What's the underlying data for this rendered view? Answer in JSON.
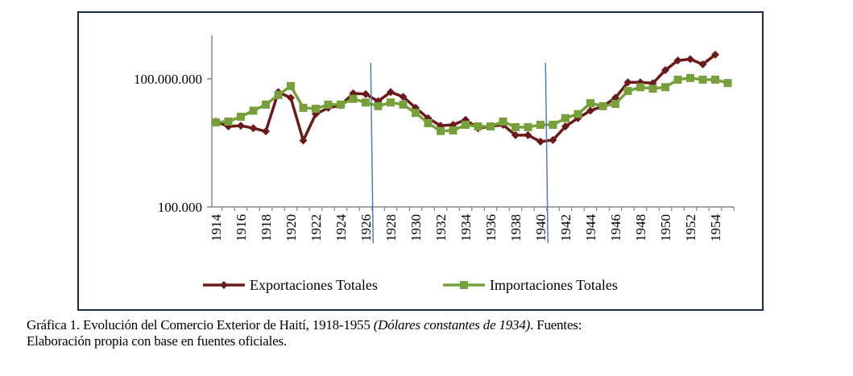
{
  "chart_data": {
    "type": "line",
    "title": "",
    "xlabel": "",
    "ylabel": "",
    "yscale": "log",
    "ylim": [
      100000,
      1000000000
    ],
    "y_ticks": [
      {
        "value": 100000,
        "label": "100.000"
      },
      {
        "value": 100000000,
        "label": "100.000.000"
      }
    ],
    "x": [
      1914,
      1915,
      1916,
      1917,
      1918,
      1919,
      1920,
      1921,
      1922,
      1923,
      1924,
      1925,
      1926,
      1927,
      1928,
      1929,
      1930,
      1931,
      1932,
      1933,
      1934,
      1935,
      1936,
      1937,
      1938,
      1939,
      1940,
      1941,
      1942,
      1943,
      1944,
      1945,
      1946,
      1947,
      1948,
      1949,
      1950,
      1951,
      1952,
      1953,
      1954,
      1955
    ],
    "x_tick_labels": [
      "1914",
      "1916",
      "1918",
      "1920",
      "1922",
      "1924",
      "1926",
      "1928",
      "1930",
      "1932",
      "1934",
      "1936",
      "1938",
      "1940",
      "1942",
      "1944",
      "1946",
      "1948",
      "1950",
      "1952",
      "1954"
    ],
    "series": [
      {
        "name": "Exportaciones Totales",
        "color": "#6b1a1c",
        "marker": "diamond",
        "values": [
          10000000,
          7700000,
          8000000,
          7000000,
          5900000,
          49000000,
          36000000,
          3600000,
          15000000,
          21000000,
          24000000,
          46000000,
          44000000,
          30000000,
          49000000,
          38000000,
          21000000,
          12000000,
          8000000,
          8400000,
          11000000,
          7000000,
          7700000,
          8400000,
          4800000,
          4800000,
          3400000,
          3700000,
          7700000,
          12000000,
          18000000,
          23000000,
          36000000,
          83000000,
          83000000,
          79000000,
          160000000,
          270000000,
          290000000,
          220000000,
          370000000,
          null
        ]
      },
      {
        "name": "Importaciones Totales",
        "color": "#77a03a",
        "marker": "square",
        "values": [
          9600000,
          10000000,
          13000000,
          18000000,
          25000000,
          42000000,
          68000000,
          21000000,
          20000000,
          25000000,
          25000000,
          34000000,
          28000000,
          23000000,
          28000000,
          25000000,
          16000000,
          9200000,
          6000000,
          6200000,
          8400000,
          7700000,
          7700000,
          10000000,
          7400000,
          7400000,
          8400000,
          8400000,
          12000000,
          15000000,
          27000000,
          23000000,
          26000000,
          52000000,
          64000000,
          59000000,
          64000000,
          96000000,
          105000000,
          96000000,
          96000000,
          80000000
        ]
      }
    ],
    "annotations": [
      {
        "type": "vertical-line",
        "x": 1926.5,
        "color": "#4a7ebb"
      },
      {
        "type": "vertical-line",
        "x": 1940.5,
        "color": "#4a7ebb"
      }
    ],
    "legend": {
      "position": "bottom",
      "entries": [
        "Exportaciones Totales",
        "Importaciones Totales"
      ]
    },
    "grid": false
  },
  "caption": {
    "prefix": "Gráfica 1. Evolución del Comercio Exterior de Haití, 1918-1955 ",
    "italic": "(Dólares constantes de 1934)",
    "suffix": ". Fuentes:",
    "line2": "Elaboración propia con base en fuentes oficiales."
  }
}
